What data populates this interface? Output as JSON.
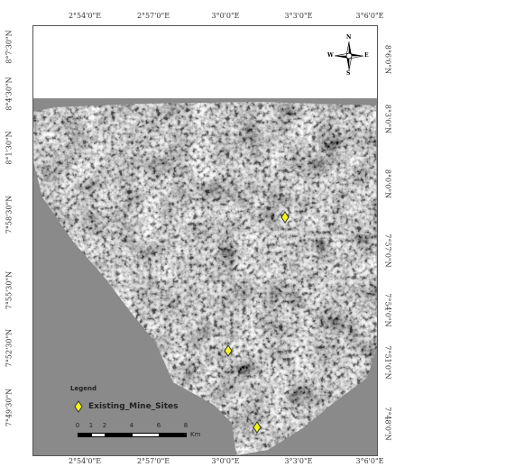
{
  "top_ticks": [
    "2°54'0\"E",
    "2°57'0\"E",
    "3°0'0\"E",
    "3°3'0\"E",
    "3°6'0\"E"
  ],
  "bottom_ticks": [
    "2°54'0\"E",
    "2°57'0\"E",
    "3°0'0\"E",
    "3°3'0\"E",
    "3°6'0\"E"
  ],
  "left_ticks": [
    "8°7'30\"N",
    "8°4'30\"N",
    "8°1'30\"N",
    "7°58'30\"N",
    "7°55'30\"N",
    "7°52'30\"N",
    "7°49'30\"N"
  ],
  "right_ticks": [
    "8°6'0\"N",
    "8°3'0\"N",
    "8°0'0\"N",
    "7°57'0\"N",
    "7°54'0\"N",
    "7°51'0\"N",
    "7°48'0\"N"
  ],
  "north_arrow": {
    "n": "N",
    "s": "S",
    "e": "E",
    "w": "W"
  },
  "legend": {
    "title": "Legend",
    "entries": [
      {
        "label": "Existing_Mine_Sites",
        "symbol": "diamond-icon",
        "color": "#f5f51a"
      }
    ]
  },
  "scalebar": {
    "labels": [
      "0",
      "1",
      "2",
      "4",
      "6",
      "8"
    ],
    "unit": "Km"
  },
  "mine_site_count": 3,
  "colors": {
    "nodata": "#8a8a8a",
    "marker_fill": "#f5f51a",
    "marker_stroke": "#333333"
  }
}
